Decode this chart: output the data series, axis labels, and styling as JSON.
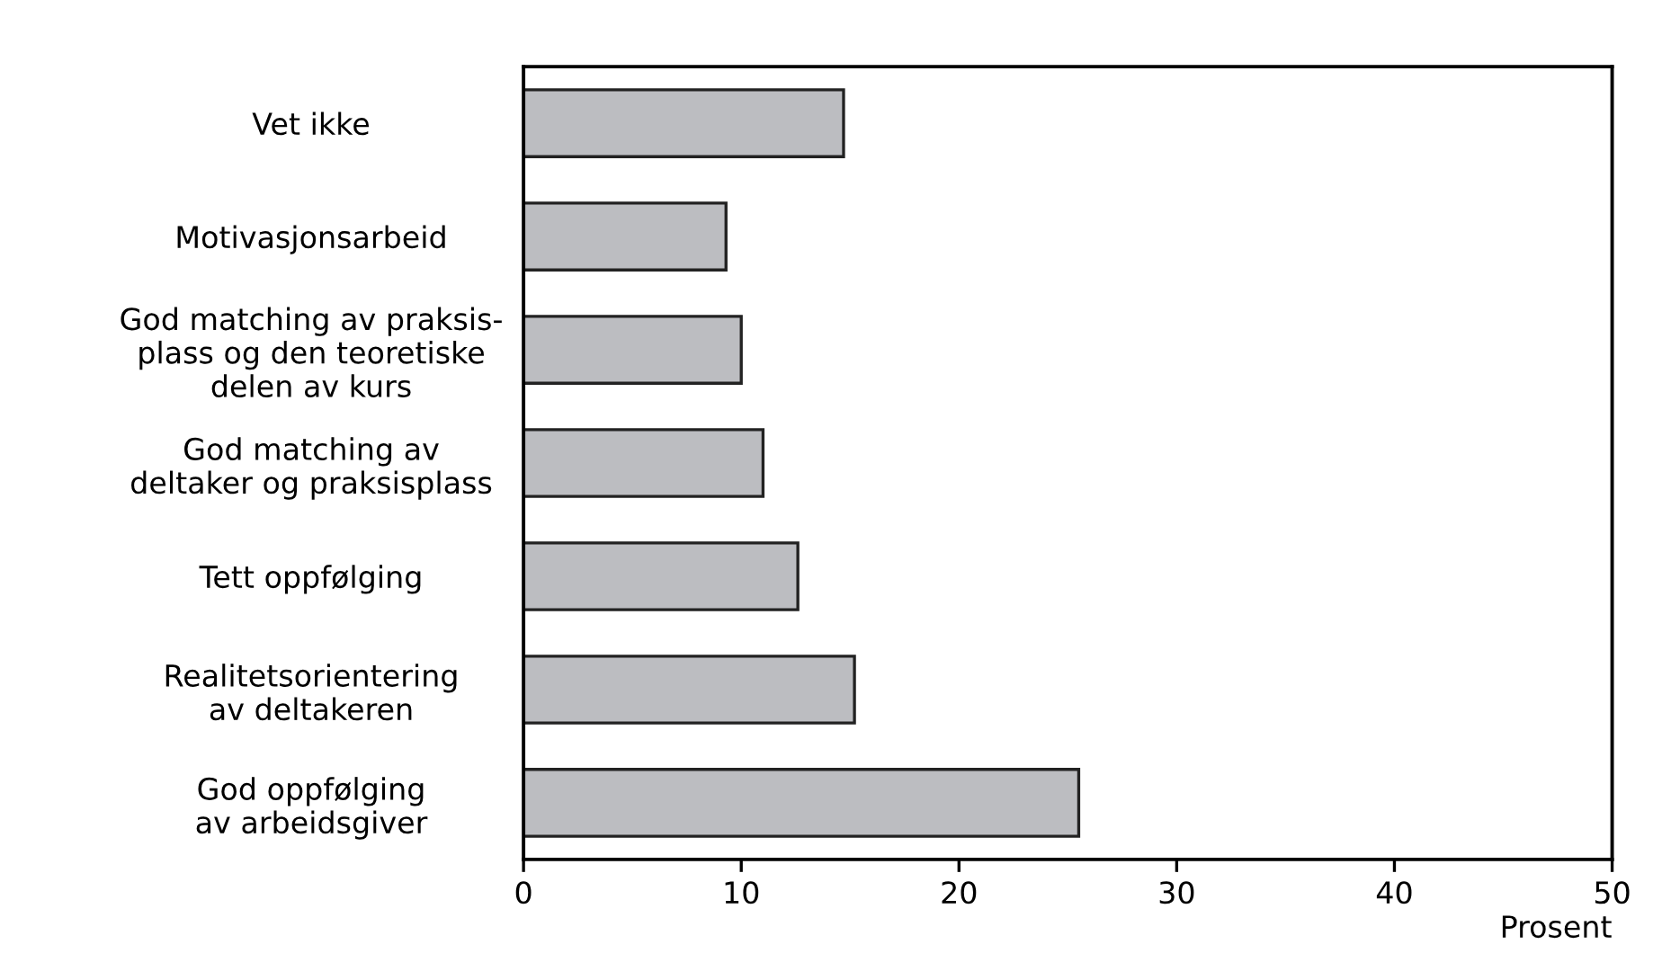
{
  "chart_data": {
    "type": "bar",
    "orientation": "horizontal",
    "xlabel": "Prosent",
    "categories": [
      "Vet ikke",
      "Motivasjonsarbeid",
      "God matching av praksis-\nplass og den teoretiske\ndelen av kurs",
      "God matching av\ndeltaker og praksisplass",
      "Tett oppfølging",
      "Realitetsorientering\nav deltakeren",
      "God oppfølging\nav arbeidsgiver"
    ],
    "values": [
      14.7,
      9.3,
      10.0,
      11.0,
      12.6,
      15.2,
      25.5
    ],
    "color": "#bcbdc1",
    "xlim": [
      0,
      50
    ],
    "xticks": [
      0,
      10,
      20,
      30,
      40,
      50
    ],
    "grid": false,
    "legend": false
  }
}
